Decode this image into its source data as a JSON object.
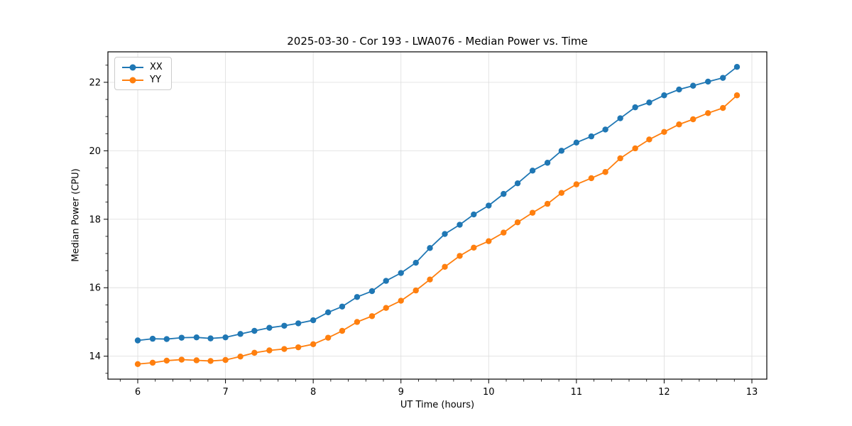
{
  "chart_data": {
    "type": "line",
    "title": "2025-03-30 - Cor 193 - LWA076 - Median Power vs. Time",
    "xlabel": "UT Time (hours)",
    "ylabel": "Median Power (CPU)",
    "xlim": [
      5.66,
      13.17
    ],
    "ylim": [
      13.33,
      22.89
    ],
    "xticks": [
      6,
      7,
      8,
      9,
      10,
      11,
      12,
      13
    ],
    "yticks": [
      14,
      16,
      18,
      20,
      22
    ],
    "minor_x_step": 0.2,
    "minor_y_step": 0.5,
    "grid": true,
    "grid_color": "#e0e0e0",
    "legend_position": "upper left",
    "x": [
      6.0,
      6.17,
      6.33,
      6.5,
      6.67,
      6.83,
      7.0,
      7.17,
      7.33,
      7.5,
      7.67,
      7.83,
      8.0,
      8.17,
      8.33,
      8.5,
      8.67,
      8.83,
      9.0,
      9.17,
      9.33,
      9.5,
      9.67,
      9.83,
      10.0,
      10.17,
      10.33,
      10.5,
      10.67,
      10.83,
      11.0,
      11.17,
      11.33,
      11.5,
      11.67,
      11.83,
      12.0,
      12.17,
      12.33,
      12.5,
      12.67,
      12.83
    ],
    "series": [
      {
        "name": "XX",
        "color": "#1f77b4",
        "values": [
          14.46,
          14.51,
          14.5,
          14.54,
          14.55,
          14.52,
          14.55,
          14.65,
          14.74,
          14.83,
          14.89,
          14.96,
          15.05,
          15.28,
          15.45,
          15.73,
          15.9,
          16.2,
          16.43,
          16.73,
          17.16,
          17.57,
          17.84,
          18.14,
          18.4,
          18.74,
          19.05,
          19.42,
          19.65,
          20.0,
          20.24,
          20.42,
          20.62,
          20.95,
          21.27,
          21.41,
          21.62,
          21.79,
          21.9,
          22.02,
          22.13,
          22.45
        ]
      },
      {
        "name": "YY",
        "color": "#ff7f0e",
        "values": [
          13.77,
          13.81,
          13.87,
          13.9,
          13.88,
          13.86,
          13.89,
          13.99,
          14.1,
          14.17,
          14.21,
          14.26,
          14.35,
          14.54,
          14.74,
          15.0,
          15.17,
          15.41,
          15.62,
          15.92,
          16.24,
          16.61,
          16.93,
          17.17,
          17.36,
          17.61,
          17.91,
          18.19,
          18.45,
          18.77,
          19.02,
          19.2,
          19.38,
          19.78,
          20.07,
          20.33,
          20.55,
          20.77,
          20.92,
          21.1,
          21.25,
          21.62
        ]
      }
    ]
  }
}
